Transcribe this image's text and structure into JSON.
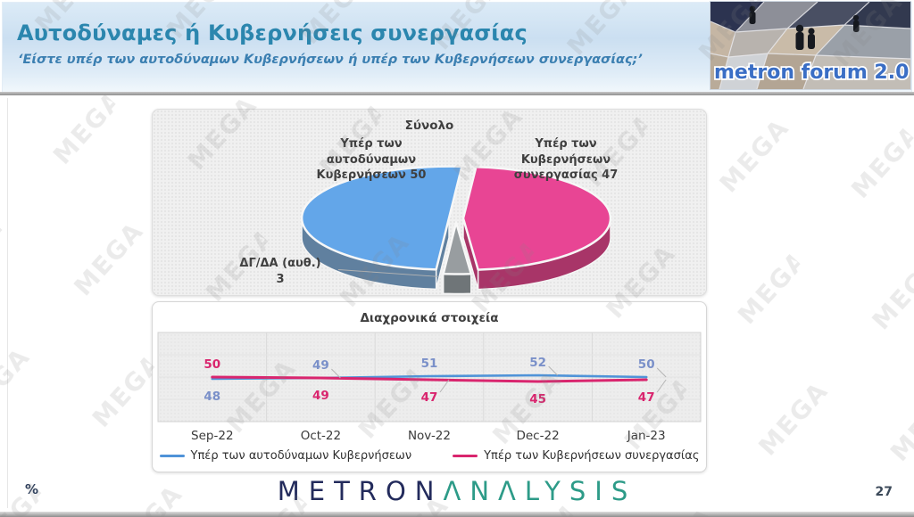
{
  "watermark": {
    "text": "MEGA"
  },
  "header": {
    "title": "Αυτοδύναμες ή Κυβερνήσεις συνεργασίας",
    "subtitle": "‘Είστε υπέρ των αυτοδύναμων Κυβερνήσεων ή υπέρ των Κυβερνήσεων συνεργασίας;’",
    "logo_text": "metron forum 2.0"
  },
  "footer": {
    "percent_label": "%",
    "brand_primary": "METRON",
    "brand_secondary": "ΛNΛLYSIS",
    "page_number": "27"
  },
  "chart_data": [
    {
      "type": "pie",
      "title": "Σύνολο",
      "slices": [
        {
          "label": "Υπέρ των αυτοδύναμων Κυβερνήσεων",
          "value": 50,
          "label_lines": [
            "Υπέρ των",
            "αυτοδύναμων",
            "Κυβερνήσεων 50"
          ],
          "color": "#63a6e9",
          "dark": "#60809f"
        },
        {
          "label": "Υπέρ των Κυβερνήσεων συνεργασίας",
          "value": 47,
          "label_lines": [
            "Υπέρ των",
            "Κυβερνήσεων",
            "συνεργασίας 47"
          ],
          "color": "#e84594",
          "dark": "#a83568"
        },
        {
          "label": "ΔΓ/ΔΑ (αυθ.)",
          "value": 3,
          "label_lines": [
            "ΔΓ/ΔΑ (αυθ.)",
            "3"
          ],
          "color": "#989da0",
          "dark": "#6f7578"
        }
      ]
    },
    {
      "type": "line",
      "title": "Διαχρονικά στοιχεία",
      "categories": [
        "Sep-22",
        "Oct-22",
        "Nov-22",
        "Dec-22",
        "Jan-23"
      ],
      "series": [
        {
          "name": "Υπέρ των αυτοδύναμων Κυβερνήσεων",
          "values": [
            48,
            49,
            51,
            52,
            50
          ],
          "color": "#4f93d8",
          "label_color": "#7a90c9"
        },
        {
          "name": "Υπέρ των Κυβερνήσεων συνεργασίας",
          "values": [
            50,
            49,
            47,
            45,
            47
          ],
          "color": "#d9256e",
          "label_color": "#d9256e"
        }
      ],
      "ylim": [
        0,
        100
      ],
      "grid": true,
      "legend_position": "bottom"
    }
  ]
}
